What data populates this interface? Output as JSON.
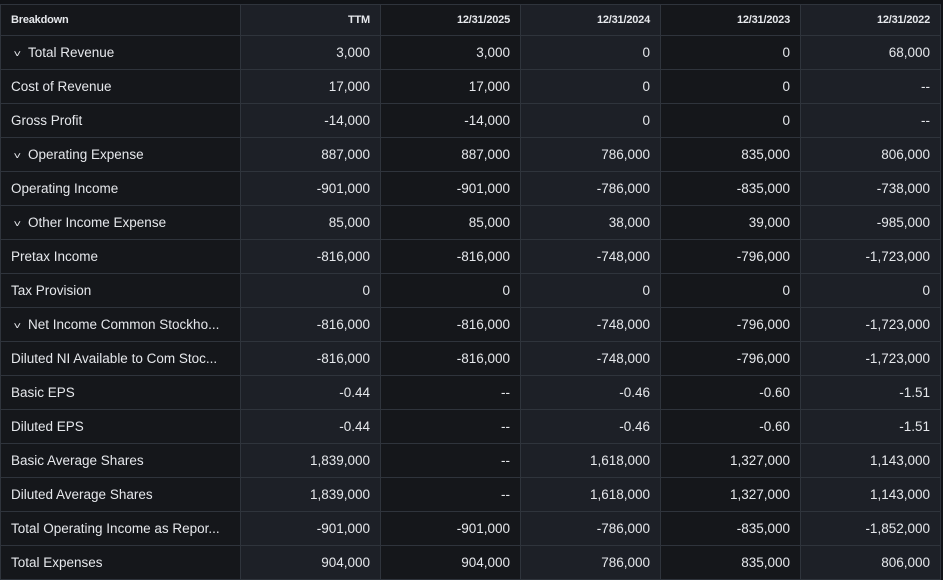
{
  "table": {
    "headers": [
      "Breakdown",
      "TTM",
      "12/31/2025",
      "12/31/2024",
      "12/31/2023",
      "12/31/2022"
    ],
    "rows": [
      {
        "label": "Total Revenue",
        "expandable": true,
        "values": [
          "3,000",
          "3,000",
          "0",
          "0",
          "68,000"
        ]
      },
      {
        "label": "Cost of Revenue",
        "expandable": false,
        "values": [
          "17,000",
          "17,000",
          "0",
          "0",
          "--"
        ]
      },
      {
        "label": "Gross Profit",
        "expandable": false,
        "values": [
          "-14,000",
          "-14,000",
          "0",
          "0",
          "--"
        ]
      },
      {
        "label": "Operating Expense",
        "expandable": true,
        "values": [
          "887,000",
          "887,000",
          "786,000",
          "835,000",
          "806,000"
        ]
      },
      {
        "label": "Operating Income",
        "expandable": false,
        "values": [
          "-901,000",
          "-901,000",
          "-786,000",
          "-835,000",
          "-738,000"
        ]
      },
      {
        "label": "Other Income Expense",
        "expandable": true,
        "values": [
          "85,000",
          "85,000",
          "38,000",
          "39,000",
          "-985,000"
        ]
      },
      {
        "label": "Pretax Income",
        "expandable": false,
        "values": [
          "-816,000",
          "-816,000",
          "-748,000",
          "-796,000",
          "-1,723,000"
        ]
      },
      {
        "label": "Tax Provision",
        "expandable": false,
        "values": [
          "0",
          "0",
          "0",
          "0",
          "0"
        ]
      },
      {
        "label": "Net Income Common Stockho...",
        "expandable": true,
        "values": [
          "-816,000",
          "-816,000",
          "-748,000",
          "-796,000",
          "-1,723,000"
        ]
      },
      {
        "label": "Diluted NI Available to Com Stoc...",
        "expandable": false,
        "values": [
          "-816,000",
          "-816,000",
          "-748,000",
          "-796,000",
          "-1,723,000"
        ]
      },
      {
        "label": "Basic EPS",
        "expandable": false,
        "values": [
          "-0.44",
          "--",
          "-0.46",
          "-0.60",
          "-1.51"
        ]
      },
      {
        "label": "Diluted EPS",
        "expandable": false,
        "values": [
          "-0.44",
          "--",
          "-0.46",
          "-0.60",
          "-1.51"
        ]
      },
      {
        "label": "Basic Average Shares",
        "expandable": false,
        "values": [
          "1,839,000",
          "--",
          "1,618,000",
          "1,327,000",
          "1,143,000"
        ]
      },
      {
        "label": "Diluted Average Shares",
        "expandable": false,
        "values": [
          "1,839,000",
          "--",
          "1,618,000",
          "1,327,000",
          "1,143,000"
        ]
      },
      {
        "label": "Total Operating Income as Repor...",
        "expandable": false,
        "values": [
          "-901,000",
          "-901,000",
          "-786,000",
          "-835,000",
          "-1,852,000"
        ]
      },
      {
        "label": "Total Expenses",
        "expandable": false,
        "values": [
          "904,000",
          "904,000",
          "786,000",
          "835,000",
          "806,000"
        ]
      }
    ]
  }
}
